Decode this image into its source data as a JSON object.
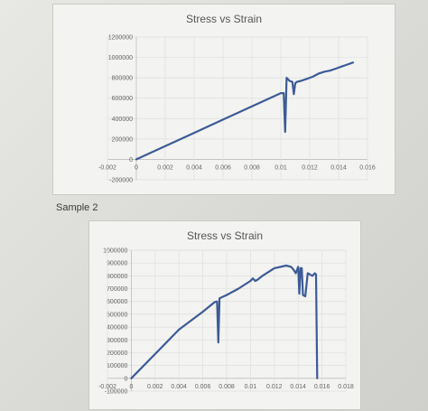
{
  "section_label": "Sample 2",
  "chart_data": [
    {
      "type": "line",
      "title": "Stress vs Strain",
      "xlabel": "",
      "ylabel": "",
      "xlim": [
        -0.002,
        0.016
      ],
      "ylim": [
        -200000,
        1200000
      ],
      "x_ticks": [
        "-0.002",
        "0",
        "0.002",
        "0.004",
        "0.006",
        "0.008",
        "0.01",
        "0.012",
        "0.014",
        "0.016"
      ],
      "y_ticks": [
        "-200000",
        "0",
        "200000",
        "400000",
        "600000",
        "800000",
        "1000000",
        "1200000"
      ],
      "grid": true,
      "line_color": "#3c5b96",
      "series": [
        {
          "x": [
            0,
            0.002,
            0.004,
            0.006,
            0.008,
            0.01,
            0.0102,
            0.0103,
            0.0104,
            0.0106,
            0.0108,
            0.0109,
            0.011,
            0.0111,
            0.0114,
            0.0118,
            0.0122,
            0.0126,
            0.013,
            0.0134,
            0.0138,
            0.0142,
            0.0146,
            0.015
          ],
          "y": [
            0,
            130000,
            260000,
            390000,
            520000,
            650000,
            650000,
            270000,
            800000,
            770000,
            760000,
            640000,
            745000,
            760000,
            770000,
            790000,
            810000,
            840000,
            860000,
            870000,
            890000,
            910000,
            930000,
            950000
          ]
        }
      ]
    },
    {
      "type": "line",
      "title": "Stress vs Strain",
      "xlabel": "",
      "ylabel": "",
      "xlim": [
        -0.002,
        0.018
      ],
      "ylim": [
        -100000,
        1000000
      ],
      "x_ticks": [
        "-0.002",
        "0",
        "0.002",
        "0.004",
        "0.006",
        "0.008",
        "0.01",
        "0.012",
        "0.014",
        "0.016",
        "0.018"
      ],
      "y_ticks": [
        "-100000",
        "0",
        "100000",
        "200000",
        "300000",
        "400000",
        "500000",
        "600000",
        "700000",
        "800000",
        "900000",
        "1000000"
      ],
      "grid": true,
      "line_color": "#3c5b96",
      "series": [
        {
          "x": [
            0,
            0.002,
            0.004,
            0.006,
            0.007,
            0.0072,
            0.0073,
            0.0074,
            0.008,
            0.009,
            0.01,
            0.0102,
            0.0104,
            0.0106,
            0.011,
            0.012,
            0.013,
            0.0134,
            0.0136,
            0.0138,
            0.014,
            0.0141,
            0.0142,
            0.0143,
            0.0144,
            0.0146,
            0.0148,
            0.015,
            0.0152,
            0.0154,
            0.0155,
            0.0156
          ],
          "y": [
            0,
            190000,
            380000,
            520000,
            595000,
            600000,
            280000,
            625000,
            650000,
            700000,
            760000,
            780000,
            760000,
            770000,
            800000,
            860000,
            880000,
            870000,
            850000,
            820000,
            870000,
            660000,
            860000,
            860000,
            650000,
            640000,
            820000,
            810000,
            800000,
            820000,
            810000,
            0
          ]
        }
      ]
    }
  ]
}
